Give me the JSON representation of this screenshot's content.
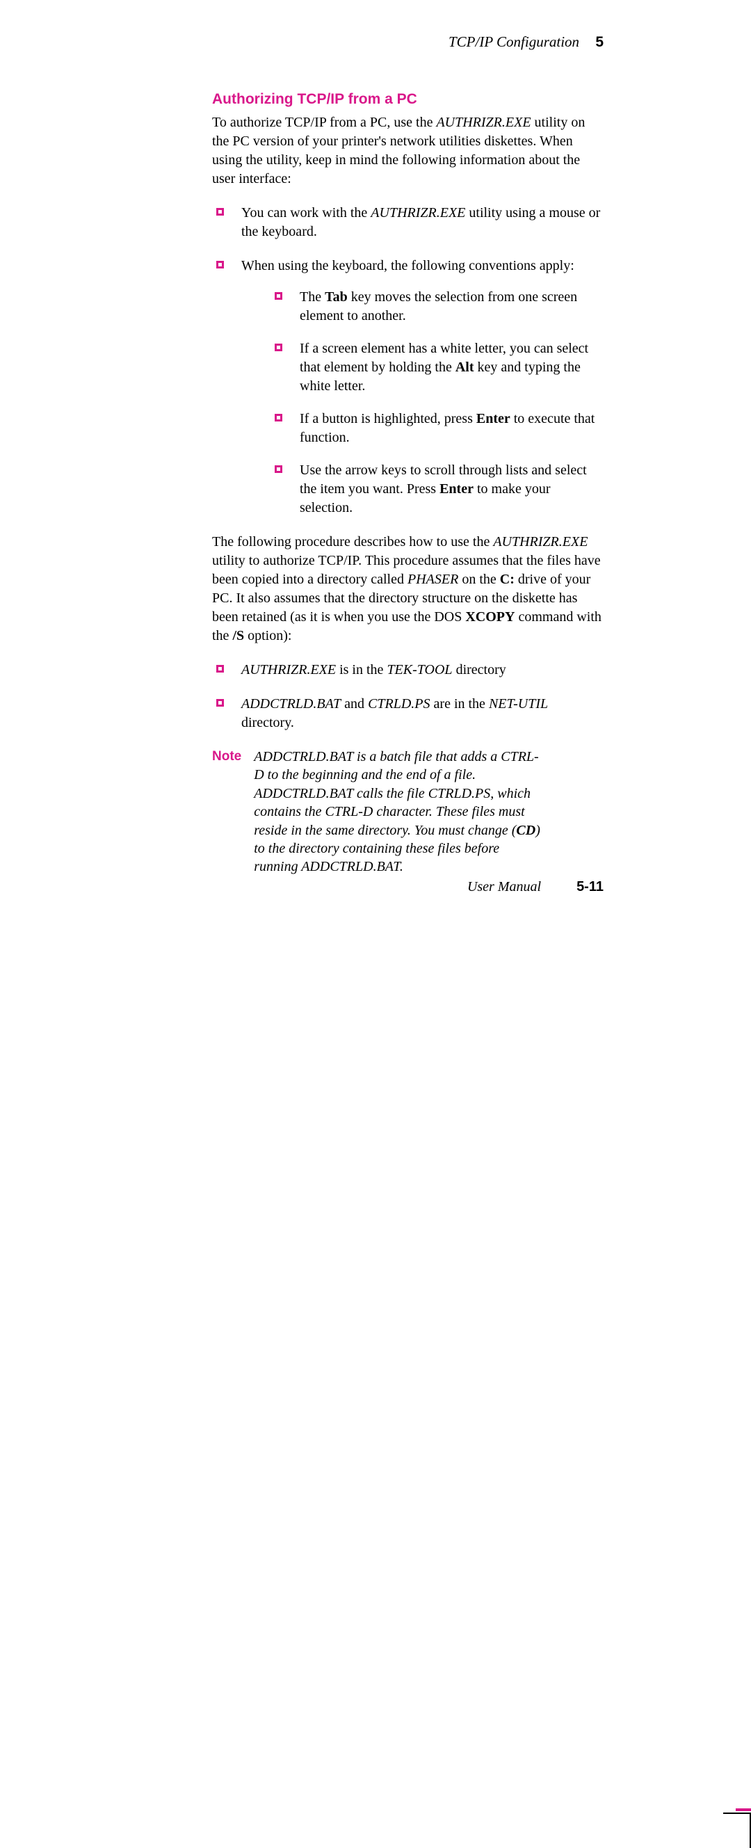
{
  "header": {
    "title": "TCP/IP Configuration",
    "chapter": "5"
  },
  "section_title": "Authorizing TCP/IP from a PC",
  "intro": {
    "t1": "To authorize TCP/IP from a PC, use the ",
    "exe": "AUTHRIZR.EXE",
    "t2": " utility on the PC version of your printer's network utilities diskettes.  When using the utility, keep in mind the following information about the user interface:"
  },
  "b1": {
    "t1": "You can work with the ",
    "exe": "AUTHRIZR.EXE",
    "t2": " utility using a mouse or the keyboard."
  },
  "b2": {
    "t1": "When using the keyboard, the following conventions apply:"
  },
  "s1": {
    "t1": "The ",
    "k": "Tab",
    "t2": " key moves the selection from one screen element to another."
  },
  "s2": {
    "t1": "If a screen element has a white letter, you can select that element by holding the ",
    "k": "Alt",
    "t2": " key and typing the white letter."
  },
  "s3": {
    "t1": "If a button is highlighted, press ",
    "k": "Enter",
    "t2": " to execute that function."
  },
  "s4": {
    "t1": "Use the arrow keys to scroll through lists and select the item you want.  Press ",
    "k": "Enter",
    "t2": " to make your selection."
  },
  "mid": {
    "t1": "The following procedure describes how to use the ",
    "exe": "AUTHRIZR.EXE",
    "t2": " utility to authorize TCP/IP.  This procedure assumes that the files have been copied into a directory called ",
    "ph": "PHASER",
    "t3": " on the ",
    "c": "C:",
    "t4": " drive of your PC.  It also assumes that the directory structure on the diskette has been retained (as it is when you use the DOS ",
    "xc": "XCOPY",
    "t5": " command with the ",
    "s": "/S",
    "t6": " option):"
  },
  "d1": {
    "a": "AUTHRIZR.EXE",
    "m": " is in the ",
    "b": "TEK-TOOL",
    "e": " directory"
  },
  "d2": {
    "a": "ADDCTRLD.BAT",
    "m1": " and ",
    "b": "CTRLD.PS",
    "m2": " are in the ",
    "c": "NET-UTIL",
    "e": " directory."
  },
  "note": {
    "label": "Note",
    "p": {
      "t1": "ADDCTRLD.BAT is a batch file that adds a CTRL-D to the beginning and the end of a file.  ADDCTRLD.BAT calls the file CTRLD.PS, which contains the CTRL-D character.  These files must reside in the same directory.  You must change (",
      "cd": "CD",
      "t2": ") to the directory containing these files before running ADDCTRLD.BAT."
    }
  },
  "footer": {
    "label": "User Manual",
    "page": "5-11"
  },
  "colors": {
    "accent": "#d9178a",
    "text": "#000000",
    "bg": "#ffffff"
  }
}
